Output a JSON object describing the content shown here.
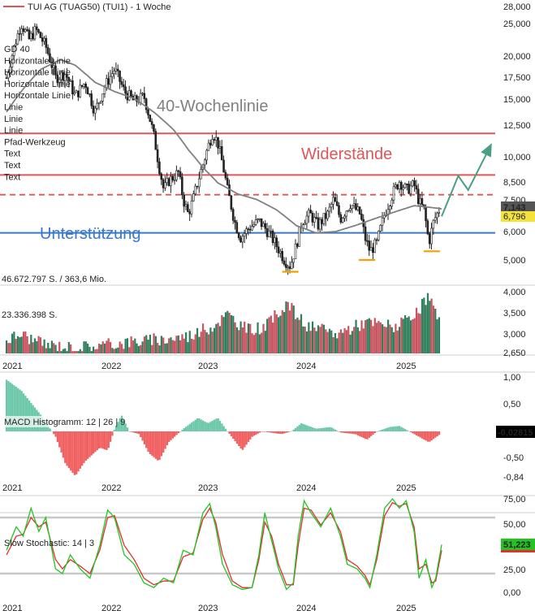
{
  "colors": {
    "up": "#2e7d5b",
    "down": "#c8535e",
    "ma": "#808080",
    "resistance": "#e05555",
    "support": "#3a78c8",
    "arrow": "#4a9e82",
    "macd_pos": "#6cc8a8",
    "macd_neg": "#f06060",
    "stoch_k": "#22c422",
    "stoch_d": "#e03030",
    "bands": "#c8c8c8",
    "marker": "#f0a000"
  },
  "header": {
    "title": "TUI AG (TUAG50) (TUI1) - 1 Woche"
  },
  "price_panel": {
    "y_ticks": [
      "28,000",
      "25,000",
      "20,000",
      "17,500",
      "15,000",
      "12,500",
      "10,000",
      "8,500",
      "7,500",
      "6,000",
      "5,000"
    ],
    "last_price": "7,143",
    "second_price": "6,796",
    "ma_label": "40-Wochenlinie",
    "resistance_label": "Widerstände",
    "support_label": "Unterstützung",
    "tool_list": [
      "GD 40",
      "Horizontale Linie",
      "Horizontale Linie",
      "Horizontale Linie",
      "Horizontale Linie",
      "Linie",
      "Linie",
      "Linie",
      "Pfad-Werkzeug",
      "Text",
      "Text",
      "Text"
    ]
  },
  "volume_panel": {
    "top_label": "46.672.797 S. / 363,6 Mio.",
    "mid_label": "23.336.398 S.",
    "y_ticks": [
      "4,000",
      "3,500",
      "3,000",
      "2,650"
    ]
  },
  "macd_panel": {
    "label": "MACD Histogramm: 12 | 26 | 9",
    "y_ticks": [
      "1,00",
      "0,50",
      "-0,50",
      "-0,84"
    ],
    "last_value": "-0,02815"
  },
  "stoch_panel": {
    "label": "Slow Stochastic: 14 | 3",
    "y_ticks": [
      "75,00",
      "50,00",
      "25,00",
      "0,00"
    ],
    "last_value": "51,223"
  },
  "x_labels": [
    "2021",
    "2022",
    "2023",
    "2024",
    "2025"
  ],
  "chart_data": {
    "type": "candlestick",
    "title": "TUI AG (TUAG50) (TUI1) - 1 Woche",
    "price_axis": {
      "scale": "log",
      "range": [
        4.5,
        28
      ]
    },
    "horizontal_lines": {
      "resistance_upper": 11.7,
      "resistance_lower": 8.85,
      "dashed": 7.75,
      "support": 6.0
    },
    "price_path": [
      [
        2020.95,
        17.0
      ],
      [
        2021.02,
        20.5
      ],
      [
        2021.1,
        24.5
      ],
      [
        2021.18,
        22.0
      ],
      [
        2021.25,
        23.5
      ],
      [
        2021.35,
        21.0
      ],
      [
        2021.45,
        17.0
      ],
      [
        2021.55,
        17.5
      ],
      [
        2021.65,
        15.0
      ],
      [
        2021.75,
        16.5
      ],
      [
        2021.85,
        13.5
      ],
      [
        2021.95,
        16.0
      ],
      [
        2022.05,
        18.0
      ],
      [
        2022.15,
        15.5
      ],
      [
        2022.25,
        14.5
      ],
      [
        2022.35,
        15.0
      ],
      [
        2022.45,
        11.5
      ],
      [
        2022.5,
        9.5
      ],
      [
        2022.55,
        8.0
      ],
      [
        2022.6,
        8.5
      ],
      [
        2022.7,
        9.0
      ],
      [
        2022.75,
        7.5
      ],
      [
        2022.8,
        6.8
      ],
      [
        2022.85,
        7.5
      ],
      [
        2022.95,
        9.5
      ],
      [
        2023.05,
        11.8
      ],
      [
        2023.1,
        11.0
      ],
      [
        2023.15,
        9.5
      ],
      [
        2023.2,
        8.0
      ],
      [
        2023.27,
        6.5
      ],
      [
        2023.33,
        5.8
      ],
      [
        2023.42,
        6.2
      ],
      [
        2023.52,
        6.5
      ],
      [
        2023.62,
        6.0
      ],
      [
        2023.7,
        5.5
      ],
      [
        2023.78,
        5.0
      ],
      [
        2023.84,
        4.8
      ],
      [
        2023.9,
        5.5
      ],
      [
        2023.96,
        6.5
      ],
      [
        2024.04,
        6.8
      ],
      [
        2024.12,
        6.3
      ],
      [
        2024.22,
        6.8
      ],
      [
        2024.28,
        7.5
      ],
      [
        2024.35,
        6.6
      ],
      [
        2024.45,
        7.3
      ],
      [
        2024.55,
        6.8
      ],
      [
        2024.6,
        5.8
      ],
      [
        2024.65,
        5.3
      ],
      [
        2024.72,
        5.6
      ],
      [
        2024.8,
        6.8
      ],
      [
        2024.88,
        7.8
      ],
      [
        2024.95,
        8.5
      ],
      [
        2025.02,
        8.0
      ],
      [
        2025.1,
        8.3
      ],
      [
        2025.15,
        7.4
      ],
      [
        2025.2,
        7.0
      ],
      [
        2025.25,
        5.6
      ],
      [
        2025.3,
        6.5
      ],
      [
        2025.37,
        7.15
      ]
    ],
    "ma_path": [
      [
        2020.95,
        13.5
      ],
      [
        2021.1,
        15.5
      ],
      [
        2021.3,
        18.0
      ],
      [
        2021.5,
        19.2
      ],
      [
        2021.65,
        18.5
      ],
      [
        2021.85,
        16.5
      ],
      [
        2022.05,
        15.5
      ],
      [
        2022.25,
        14.8
      ],
      [
        2022.45,
        13.5
      ],
      [
        2022.65,
        12.0
      ],
      [
        2022.8,
        10.5
      ],
      [
        2022.95,
        9.3
      ],
      [
        2023.1,
        8.4
      ],
      [
        2023.3,
        7.8
      ],
      [
        2023.5,
        7.5
      ],
      [
        2023.7,
        7.0
      ],
      [
        2023.9,
        6.3
      ],
      [
        2024.1,
        6.0
      ],
      [
        2024.3,
        6.05
      ],
      [
        2024.5,
        6.3
      ],
      [
        2024.7,
        6.6
      ],
      [
        2024.9,
        6.9
      ],
      [
        2025.1,
        7.2
      ],
      [
        2025.3,
        7.1
      ],
      [
        2025.38,
        7.05
      ]
    ],
    "projection_arrow": [
      [
        2025.38,
        6.7
      ],
      [
        2025.55,
        8.8
      ],
      [
        2025.65,
        8.0
      ],
      [
        2025.88,
        10.8
      ]
    ],
    "low_markers": [
      [
        2023.84,
        4.62
      ],
      [
        2024.62,
        5.0
      ],
      [
        2025.28,
        5.3
      ]
    ],
    "volume_path": [
      [
        2020.95,
        2.95
      ],
      [
        2021.1,
        3.1
      ],
      [
        2021.3,
        2.85
      ],
      [
        2021.6,
        2.75
      ],
      [
        2021.9,
        2.8
      ],
      [
        2022.2,
        2.9
      ],
      [
        2022.5,
        2.95
      ],
      [
        2022.8,
        3.05
      ],
      [
        2023.05,
        3.3
      ],
      [
        2023.2,
        3.6
      ],
      [
        2023.4,
        3.2
      ],
      [
        2023.6,
        3.3
      ],
      [
        2023.8,
        3.9
      ],
      [
        2024.0,
        3.3
      ],
      [
        2024.3,
        3.1
      ],
      [
        2024.6,
        3.4
      ],
      [
        2024.9,
        3.3
      ],
      [
        2025.1,
        3.5
      ],
      [
        2025.25,
        4.1
      ],
      [
        2025.38,
        3.2
      ]
    ],
    "macd_path": [
      [
        2020.95,
        0.95
      ],
      [
        2021.1,
        0.75
      ],
      [
        2021.3,
        0.3
      ],
      [
        2021.45,
        -0.1
      ],
      [
        2021.55,
        -0.6
      ],
      [
        2021.65,
        -0.82
      ],
      [
        2021.75,
        -0.55
      ],
      [
        2021.9,
        -0.3
      ],
      [
        2021.98,
        -0.35
      ],
      [
        2022.05,
        0.05
      ],
      [
        2022.12,
        0.3
      ],
      [
        2022.2,
        0.0
      ],
      [
        2022.3,
        -0.05
      ],
      [
        2022.4,
        -0.4
      ],
      [
        2022.5,
        -0.55
      ],
      [
        2022.6,
        -0.2
      ],
      [
        2022.75,
        0.05
      ],
      [
        2022.9,
        0.25
      ],
      [
        2023.0,
        0.15
      ],
      [
        2023.1,
        0.25
      ],
      [
        2023.2,
        0.0
      ],
      [
        2023.35,
        -0.35
      ],
      [
        2023.45,
        -0.1
      ],
      [
        2023.55,
        0.0
      ],
      [
        2023.75,
        -0.05
      ],
      [
        2023.85,
        0.0
      ],
      [
        2023.95,
        0.15
      ],
      [
        2024.1,
        0.05
      ],
      [
        2024.25,
        0.08
      ],
      [
        2024.35,
        -0.02
      ],
      [
        2024.5,
        -0.05
      ],
      [
        2024.62,
        -0.15
      ],
      [
        2024.72,
        0.0
      ],
      [
        2024.85,
        0.08
      ],
      [
        2024.95,
        0.1
      ],
      [
        2025.05,
        0.0
      ],
      [
        2025.15,
        -0.1
      ],
      [
        2025.25,
        -0.2
      ],
      [
        2025.38,
        -0.03
      ]
    ],
    "stoch_k_path": [
      [
        2020.95,
        45
      ],
      [
        2021.05,
        70
      ],
      [
        2021.12,
        60
      ],
      [
        2021.2,
        90
      ],
      [
        2021.28,
        65
      ],
      [
        2021.35,
        80
      ],
      [
        2021.45,
        25
      ],
      [
        2021.52,
        20
      ],
      [
        2021.6,
        40
      ],
      [
        2021.7,
        25
      ],
      [
        2021.8,
        15
      ],
      [
        2021.9,
        50
      ],
      [
        2021.98,
        88
      ],
      [
        2022.05,
        80
      ],
      [
        2022.15,
        40
      ],
      [
        2022.25,
        30
      ],
      [
        2022.35,
        10
      ],
      [
        2022.45,
        5
      ],
      [
        2022.55,
        15
      ],
      [
        2022.65,
        10
      ],
      [
        2022.75,
        45
      ],
      [
        2022.85,
        40
      ],
      [
        2022.95,
        85
      ],
      [
        2023.02,
        95
      ],
      [
        2023.08,
        70
      ],
      [
        2023.15,
        30
      ],
      [
        2023.25,
        8
      ],
      [
        2023.35,
        3
      ],
      [
        2023.45,
        5
      ],
      [
        2023.52,
        40
      ],
      [
        2023.58,
        85
      ],
      [
        2023.65,
        55
      ],
      [
        2023.72,
        25
      ],
      [
        2023.8,
        3
      ],
      [
        2023.87,
        10
      ],
      [
        2023.92,
        60
      ],
      [
        2023.98,
        98
      ],
      [
        2024.05,
        85
      ],
      [
        2024.15,
        70
      ],
      [
        2024.25,
        90
      ],
      [
        2024.35,
        60
      ],
      [
        2024.42,
        30
      ],
      [
        2024.52,
        25
      ],
      [
        2024.6,
        15
      ],
      [
        2024.65,
        5
      ],
      [
        2024.72,
        40
      ],
      [
        2024.8,
        90
      ],
      [
        2024.88,
        100
      ],
      [
        2024.95,
        90
      ],
      [
        2025.02,
        98
      ],
      [
        2025.1,
        65
      ],
      [
        2025.15,
        15
      ],
      [
        2025.22,
        35
      ],
      [
        2025.28,
        5
      ],
      [
        2025.32,
        15
      ],
      [
        2025.38,
        51
      ]
    ],
    "stoch_d_path": [
      [
        2020.95,
        40
      ],
      [
        2021.05,
        60
      ],
      [
        2021.12,
        62
      ],
      [
        2021.2,
        80
      ],
      [
        2021.28,
        70
      ],
      [
        2021.35,
        75
      ],
      [
        2021.45,
        35
      ],
      [
        2021.52,
        25
      ],
      [
        2021.6,
        35
      ],
      [
        2021.7,
        28
      ],
      [
        2021.8,
        20
      ],
      [
        2021.9,
        45
      ],
      [
        2021.98,
        80
      ],
      [
        2022.05,
        82
      ],
      [
        2022.15,
        50
      ],
      [
        2022.25,
        35
      ],
      [
        2022.35,
        15
      ],
      [
        2022.45,
        8
      ],
      [
        2022.55,
        12
      ],
      [
        2022.65,
        12
      ],
      [
        2022.75,
        38
      ],
      [
        2022.85,
        42
      ],
      [
        2022.95,
        78
      ],
      [
        2023.02,
        90
      ],
      [
        2023.08,
        75
      ],
      [
        2023.15,
        40
      ],
      [
        2023.25,
        12
      ],
      [
        2023.35,
        5
      ],
      [
        2023.45,
        5
      ],
      [
        2023.52,
        35
      ],
      [
        2023.58,
        75
      ],
      [
        2023.65,
        60
      ],
      [
        2023.72,
        30
      ],
      [
        2023.8,
        8
      ],
      [
        2023.87,
        8
      ],
      [
        2023.92,
        50
      ],
      [
        2023.98,
        90
      ],
      [
        2024.05,
        88
      ],
      [
        2024.15,
        72
      ],
      [
        2024.25,
        85
      ],
      [
        2024.35,
        65
      ],
      [
        2024.42,
        35
      ],
      [
        2024.52,
        28
      ],
      [
        2024.6,
        18
      ],
      [
        2024.65,
        8
      ],
      [
        2024.72,
        35
      ],
      [
        2024.8,
        82
      ],
      [
        2024.88,
        96
      ],
      [
        2024.95,
        92
      ],
      [
        2025.02,
        95
      ],
      [
        2025.1,
        70
      ],
      [
        2025.15,
        25
      ],
      [
        2025.22,
        30
      ],
      [
        2025.28,
        10
      ],
      [
        2025.32,
        12
      ],
      [
        2025.38,
        45
      ]
    ],
    "stoch_bands": [
      20,
      80
    ]
  }
}
